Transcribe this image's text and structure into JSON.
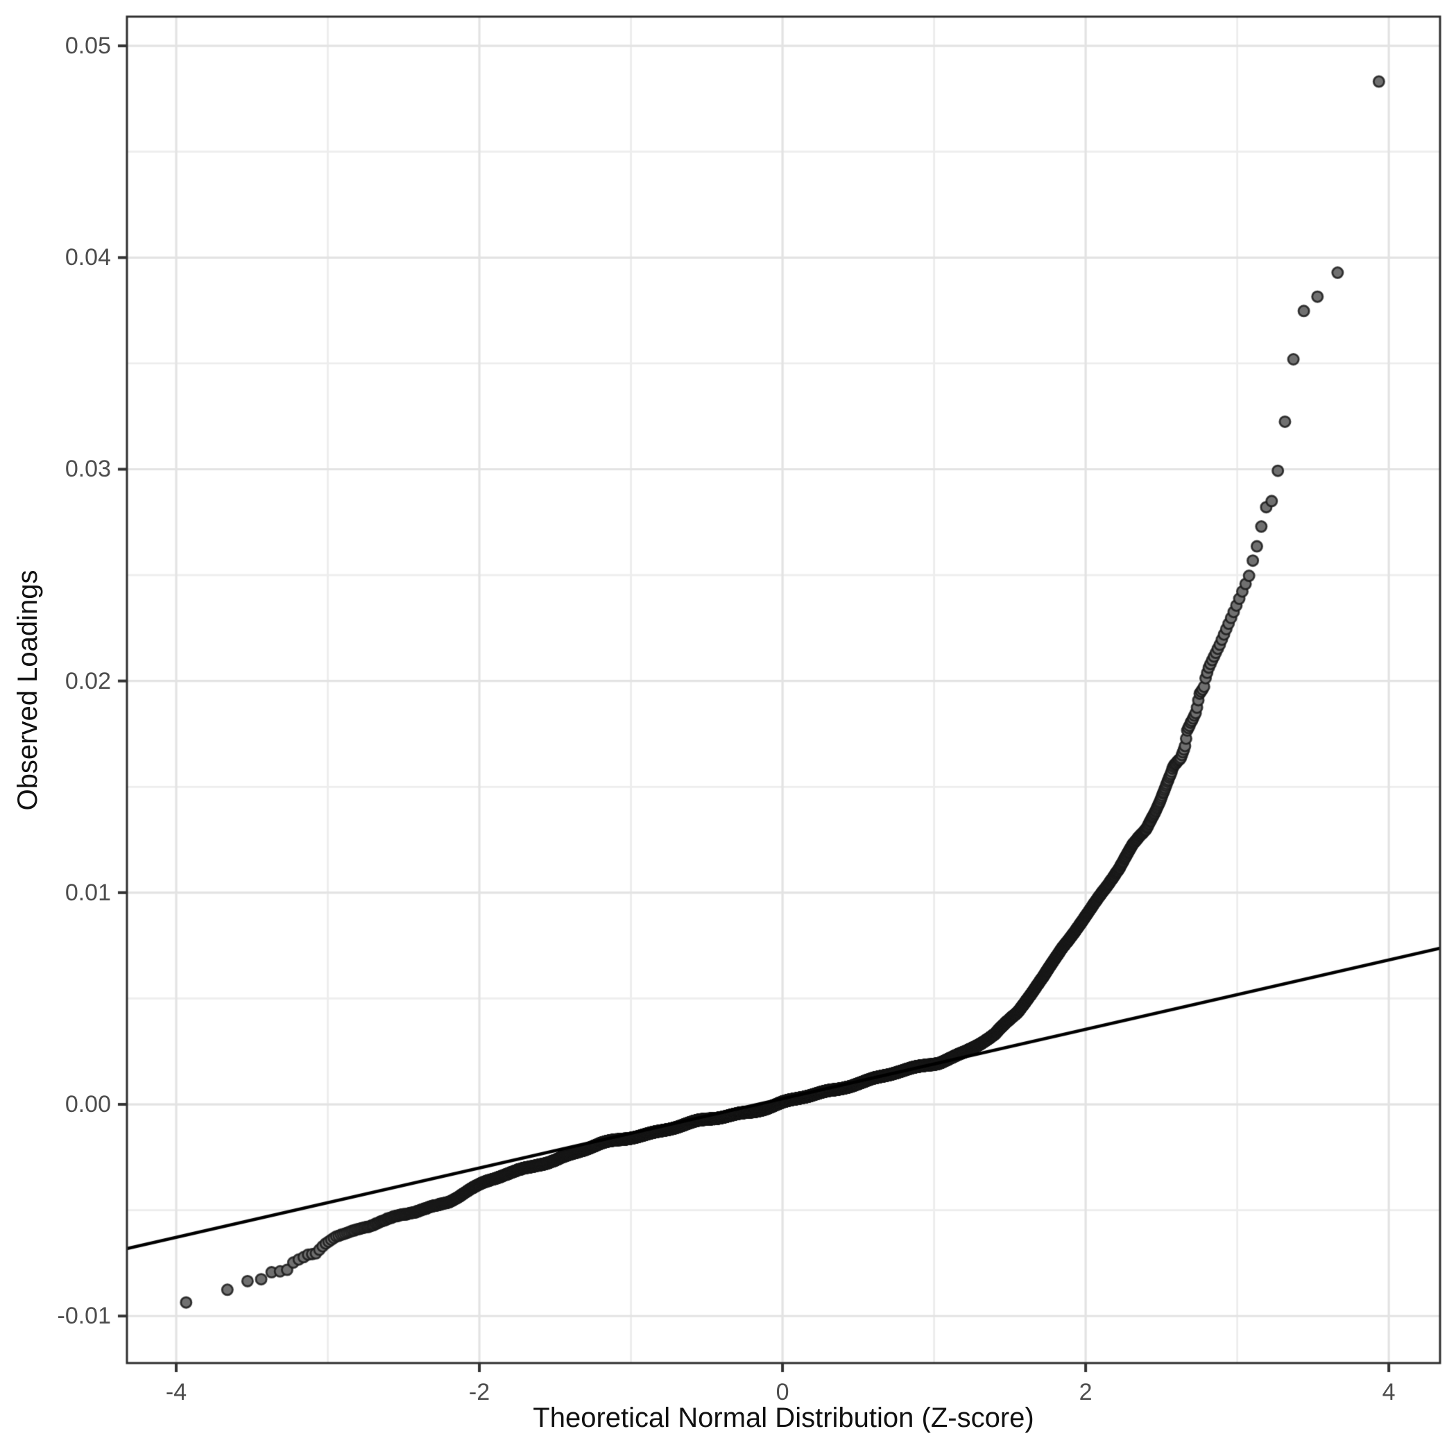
{
  "chart_data": {
    "type": "scatter",
    "subtype": "qq-plot",
    "title": "",
    "xlabel": "Theoretical Normal Distribution (Z-score)",
    "ylabel": "Observed Loadings",
    "legend": "none",
    "grid": {
      "major": true,
      "minor": true
    },
    "x_axis": {
      "ticks": [
        -4,
        -2,
        0,
        2,
        4
      ],
      "tick_labels": [
        "-4",
        "-2",
        "0",
        "2",
        "4"
      ],
      "minor_ticks": [
        -3,
        -1,
        1,
        3
      ],
      "range": [
        -4.325,
        4.338
      ]
    },
    "y_axis": {
      "ticks": [
        -0.01,
        0.0,
        0.01,
        0.02,
        0.03,
        0.04,
        0.05
      ],
      "tick_labels": [
        "-0.01",
        "0.00",
        "0.01",
        "0.02",
        "0.03",
        "0.04",
        "0.05"
      ],
      "minor_ticks": [
        -0.005,
        0.005,
        0.015,
        0.025,
        0.035,
        0.045
      ],
      "range": [
        -0.01222,
        0.05138
      ]
    },
    "n_points": 12000,
    "qq_line": {
      "intercept": 0.00027,
      "slope": 0.001638
    },
    "curve_points": [
      [
        -3.94,
        -0.00937
      ],
      [
        -3.67,
        -0.00878
      ],
      [
        -3.53,
        -0.00835
      ],
      [
        -3.45,
        -0.00833
      ],
      [
        -3.39,
        -0.00795
      ],
      [
        -3.34,
        -0.0079
      ],
      [
        -3.3,
        -0.00788
      ],
      [
        -3.26,
        -0.0078
      ],
      [
        -3.22,
        -0.0074
      ],
      [
        -3.18,
        -0.0073
      ],
      [
        -3.13,
        -0.0071
      ],
      [
        -3.08,
        -0.00705
      ],
      [
        -3.02,
        -0.0066
      ],
      [
        -2.95,
        -0.00625
      ],
      [
        -2.81,
        -0.0059
      ],
      [
        -2.65,
        -0.0056
      ],
      [
        -2.51,
        -0.00525
      ],
      [
        -2.35,
        -0.0049
      ],
      [
        -2.2,
        -0.00455
      ],
      [
        -2.08,
        -0.0041
      ],
      [
        -1.96,
        -0.0037
      ],
      [
        -1.85,
        -0.0034
      ],
      [
        -1.75,
        -0.00315
      ],
      [
        -1.61,
        -0.0028
      ],
      [
        -1.5,
        -0.0026
      ],
      [
        -1.35,
        -0.00225
      ],
      [
        -1.2,
        -0.0019
      ],
      [
        -1.0,
        -0.00155
      ],
      [
        -0.85,
        -0.0013
      ],
      [
        -0.7,
        -0.00105
      ],
      [
        -0.55,
        -0.00082
      ],
      [
        -0.43,
        -0.00066
      ],
      [
        -0.3,
        -0.00045
      ],
      [
        -0.2,
        -0.0003
      ],
      [
        -0.1,
        -0.00012
      ],
      [
        0.0,
        8e-05
      ],
      [
        0.2,
        0.00042
      ],
      [
        0.35,
        0.00068
      ],
      [
        0.48,
        0.001
      ],
      [
        0.6,
        0.00124
      ],
      [
        0.75,
        0.0015
      ],
      [
        0.9,
        0.00172
      ],
      [
        1.03,
        0.00196
      ],
      [
        1.2,
        0.0025
      ],
      [
        1.4,
        0.0033
      ],
      [
        1.55,
        0.0043
      ],
      [
        1.72,
        0.006
      ],
      [
        1.85,
        0.0075
      ],
      [
        2.0,
        0.0089
      ],
      [
        2.15,
        0.0104
      ],
      [
        2.22,
        0.0111
      ],
      [
        2.31,
        0.0122
      ],
      [
        2.4,
        0.013
      ],
      [
        2.48,
        0.0142
      ],
      [
        2.53,
        0.0151
      ],
      [
        2.58,
        0.016
      ],
      [
        2.63,
        0.0164
      ],
      [
        2.655,
        0.0169
      ],
      [
        2.67,
        0.0177
      ],
      [
        2.69,
        0.018
      ],
      [
        2.71,
        0.0183
      ],
      [
        2.73,
        0.0186
      ],
      [
        2.75,
        0.0194
      ],
      [
        2.78,
        0.0197
      ],
      [
        2.79,
        0.0201
      ],
      [
        2.81,
        0.0206
      ],
      [
        2.83,
        0.0209
      ],
      [
        2.88,
        0.0216
      ],
      [
        2.95,
        0.0228
      ],
      [
        3.02,
        0.024
      ],
      [
        3.08,
        0.025
      ],
      [
        3.11,
        0.0259
      ],
      [
        3.14,
        0.0266
      ],
      [
        3.17,
        0.0277
      ],
      [
        3.19,
        0.0282
      ],
      [
        3.24,
        0.0286
      ],
      [
        3.28,
        0.0305
      ],
      [
        3.33,
        0.033
      ],
      [
        3.38,
        0.0357
      ],
      [
        3.45,
        0.0378
      ],
      [
        3.54,
        0.0382
      ],
      [
        3.675,
        0.0394
      ],
      [
        3.94,
        0.0485
      ]
    ],
    "colors": {
      "background": "#ffffff",
      "panel_background": "#ffffff",
      "panel_border": "#2e2e2e",
      "grid_major": "#e3e3e3",
      "grid_minor": "#ededed",
      "point_fill": "#707070",
      "point_stroke": "rgba(25,25,25,0.85)",
      "qq_line": "#000000",
      "tick": "#333333",
      "tick_label": "#4d4d4d",
      "axis_title": "#111111"
    }
  }
}
